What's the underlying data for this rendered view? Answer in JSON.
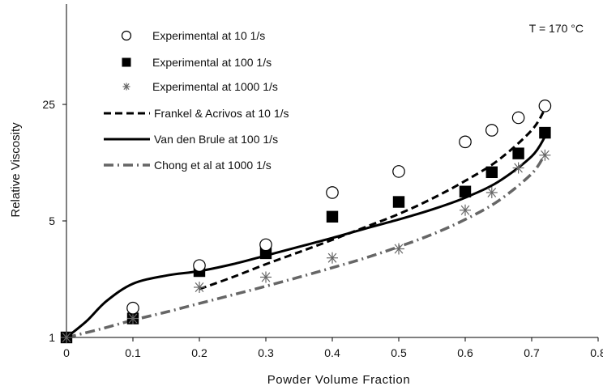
{
  "chart_data": {
    "type": "scatter",
    "title": "",
    "annotation": "T = 170 °C",
    "xlabel": "Powder Volume Fraction",
    "ylabel": "Relative Viscosity",
    "xlim": [
      0,
      0.8
    ],
    "ylim": [
      1,
      100
    ],
    "yscale": "log",
    "x_ticks": [
      "0",
      "0.1",
      "0.2",
      "0.3",
      "0.4",
      "0.5",
      "0.6",
      "0.7",
      "0.8"
    ],
    "y_ticks": [
      {
        "value": 1,
        "label": "1"
      },
      {
        "value": 5,
        "label": "5"
      },
      {
        "value": 25,
        "label": "25"
      }
    ],
    "grid": false,
    "legend_position": "top-left",
    "series": [
      {
        "name": "Experimental at 10 1/s",
        "kind": "points",
        "marker": "open-circle",
        "color": "#000000",
        "x": [
          0.1,
          0.2,
          0.3,
          0.4,
          0.5,
          0.6,
          0.64,
          0.68,
          0.72
        ],
        "y": [
          1.5,
          2.7,
          3.6,
          7.4,
          9.9,
          14.9,
          17.5,
          20.8,
          24.5
        ]
      },
      {
        "name": "Experimental at 100 1/s",
        "kind": "points",
        "marker": "filled-square",
        "color": "#000000",
        "x": [
          0,
          0.1,
          0.2,
          0.3,
          0.4,
          0.5,
          0.6,
          0.64,
          0.68,
          0.72
        ],
        "y": [
          1,
          1.3,
          2.5,
          3.2,
          5.3,
          6.5,
          7.5,
          9.8,
          12.7,
          16.9
        ]
      },
      {
        "name": "Experimental at 1000 1/s",
        "kind": "points",
        "marker": "asterisk",
        "color": "#666666",
        "x": [
          0,
          0.1,
          0.2,
          0.3,
          0.4,
          0.5,
          0.6,
          0.64,
          0.68,
          0.72
        ],
        "y": [
          1,
          1.3,
          2.0,
          2.3,
          3.0,
          3.4,
          5.8,
          7.4,
          10.4,
          12.4
        ]
      },
      {
        "name": "Frankel & Acrivos at 10 1/s",
        "kind": "line",
        "style": "dashed",
        "color": "#000000",
        "x": [
          0.2,
          0.25,
          0.3,
          0.35,
          0.4,
          0.45,
          0.5,
          0.55,
          0.6,
          0.65,
          0.7,
          0.72
        ],
        "y": [
          1.95,
          2.3,
          2.75,
          3.25,
          3.85,
          4.6,
          5.5,
          6.8,
          8.7,
          11.6,
          17.5,
          23.5
        ]
      },
      {
        "name": "Van den Brule at 100 1/s",
        "kind": "line",
        "style": "solid",
        "color": "#000000",
        "x": [
          0,
          0.03,
          0.06,
          0.1,
          0.15,
          0.2,
          0.25,
          0.3,
          0.35,
          0.4,
          0.45,
          0.5,
          0.55,
          0.6,
          0.65,
          0.7,
          0.72
        ],
        "y": [
          1.0,
          1.25,
          1.65,
          2.1,
          2.35,
          2.5,
          2.75,
          3.1,
          3.5,
          3.95,
          4.5,
          5.1,
          5.85,
          6.9,
          8.6,
          12.2,
          16.0
        ]
      },
      {
        "name": "Chong et al at 1000 1/s",
        "kind": "line",
        "style": "dash-dot",
        "color": "#666666",
        "x": [
          0,
          0.05,
          0.1,
          0.15,
          0.2,
          0.25,
          0.3,
          0.35,
          0.4,
          0.45,
          0.5,
          0.55,
          0.6,
          0.65,
          0.7,
          0.72
        ],
        "y": [
          1.0,
          1.12,
          1.27,
          1.42,
          1.6,
          1.8,
          2.03,
          2.3,
          2.62,
          3.0,
          3.5,
          4.15,
          5.1,
          6.6,
          9.6,
          12.6
        ]
      }
    ]
  }
}
